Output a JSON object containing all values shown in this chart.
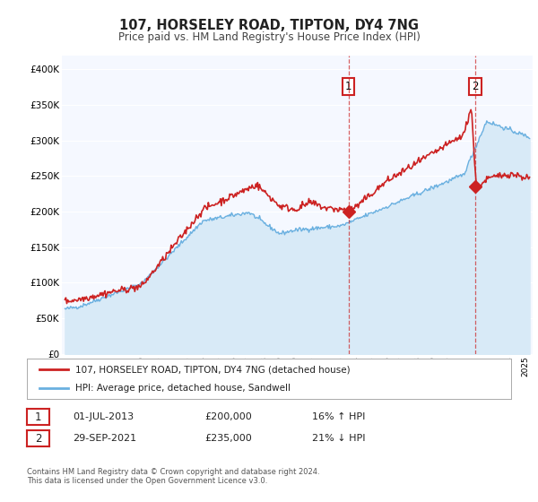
{
  "title": "107, HORSELEY ROAD, TIPTON, DY4 7NG",
  "subtitle": "Price paid vs. HM Land Registry's House Price Index (HPI)",
  "ylim": [
    0,
    420000
  ],
  "yticks": [
    0,
    50000,
    100000,
    150000,
    200000,
    250000,
    300000,
    350000,
    400000
  ],
  "ytick_labels": [
    "£0",
    "£50K",
    "£100K",
    "£150K",
    "£200K",
    "£250K",
    "£300K",
    "£350K",
    "£400K"
  ],
  "xlim_start": 1994.8,
  "xlim_end": 2025.5,
  "xtick_years": [
    1995,
    1996,
    1997,
    1998,
    1999,
    2000,
    2001,
    2002,
    2003,
    2004,
    2005,
    2006,
    2007,
    2008,
    2009,
    2010,
    2011,
    2012,
    2013,
    2014,
    2015,
    2016,
    2017,
    2018,
    2019,
    2020,
    2021,
    2022,
    2023,
    2024,
    2025
  ],
  "line_red_color": "#cc2222",
  "line_blue_color": "#6ab0e0",
  "fill_blue_color": "#d8eaf7",
  "plot_bg": "#f5f8ff",
  "grid_color": "#ffffff",
  "marker1_x": 2013.5,
  "marker1_y": 200000,
  "marker2_x": 2021.75,
  "marker2_y": 235000,
  "annotation1_date": "01-JUL-2013",
  "annotation1_price": "£200,000",
  "annotation1_hpi": "16% ↑ HPI",
  "annotation2_date": "29-SEP-2021",
  "annotation2_price": "£235,000",
  "annotation2_hpi": "21% ↓ HPI",
  "legend1_label": "107, HORSELEY ROAD, TIPTON, DY4 7NG (detached house)",
  "legend2_label": "HPI: Average price, detached house, Sandwell",
  "footer1": "Contains HM Land Registry data © Crown copyright and database right 2024.",
  "footer2": "This data is licensed under the Open Government Licence v3.0."
}
